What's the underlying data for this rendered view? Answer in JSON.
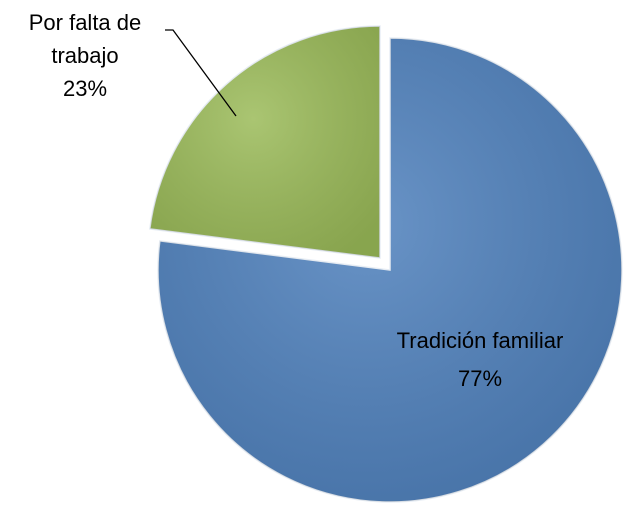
{
  "chart_data": {
    "type": "pie",
    "categories": [
      "Tradición familiar",
      "Por falta de trabajo"
    ],
    "values": [
      77,
      23
    ],
    "value_labels": [
      "77%",
      "23%"
    ],
    "colors": [
      "#4f81bd",
      "#9bbb59"
    ]
  }
}
